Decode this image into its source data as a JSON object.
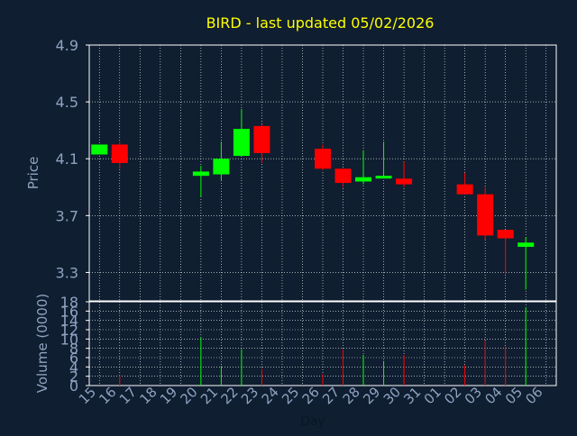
{
  "chart_data": [
    {
      "type": "candlestick",
      "title": "BIRD - last updated 05/02/2026",
      "ylabel": "Price",
      "ylim": [
        3.1,
        4.9
      ],
      "yticks": [
        "3.3",
        "3.7",
        "4.1",
        "4.5",
        "4.9"
      ],
      "grid": true,
      "up_color": "#00ff00",
      "down_color": "#ff0000",
      "x": [
        "15",
        "16",
        "17",
        "18",
        "19",
        "20",
        "21",
        "22",
        "23",
        "24",
        "25",
        "26",
        "27",
        "28",
        "29",
        "30",
        "31",
        "01",
        "02",
        "03",
        "04",
        "05",
        "06"
      ],
      "candles": [
        {
          "day": "15",
          "open": 4.13,
          "high": 4.2,
          "low": 4.13,
          "close": 4.2
        },
        {
          "day": "16",
          "open": 4.2,
          "high": 4.22,
          "low": 4.03,
          "close": 4.07
        },
        {
          "day": "20",
          "open": 3.98,
          "high": 4.05,
          "low": 3.83,
          "close": 4.01
        },
        {
          "day": "21",
          "open": 3.99,
          "high": 4.22,
          "low": 3.95,
          "close": 4.1
        },
        {
          "day": "22",
          "open": 4.12,
          "high": 4.45,
          "low": 4.12,
          "close": 4.31
        },
        {
          "day": "23",
          "open": 4.33,
          "high": 4.34,
          "low": 4.07,
          "close": 4.14
        },
        {
          "day": "26",
          "open": 4.17,
          "high": 4.2,
          "low": 4.02,
          "close": 4.03
        },
        {
          "day": "27",
          "open": 4.03,
          "high": 4.03,
          "low": 3.9,
          "close": 3.93
        },
        {
          "day": "28",
          "open": 3.94,
          "high": 4.16,
          "low": 3.92,
          "close": 3.97
        },
        {
          "day": "29",
          "open": 3.97,
          "high": 4.22,
          "low": 3.97,
          "close": 3.98
        },
        {
          "day": "30",
          "open": 3.96,
          "high": 4.08,
          "low": 3.9,
          "close": 3.92
        },
        {
          "day": "02",
          "open": 3.92,
          "high": 4.0,
          "low": 3.85,
          "close": 3.85
        },
        {
          "day": "03",
          "open": 3.85,
          "high": 3.9,
          "low": 3.53,
          "close": 3.56
        },
        {
          "day": "04",
          "open": 3.6,
          "high": 3.6,
          "low": 3.29,
          "close": 3.54
        },
        {
          "day": "05",
          "open": 3.48,
          "high": 3.55,
          "low": 3.18,
          "close": 3.51
        }
      ]
    },
    {
      "type": "bar",
      "ylabel": "Volume (0000)",
      "xlabel": "Day",
      "ylim": [
        0,
        18
      ],
      "yticks": [
        "0",
        "2",
        "4",
        "6",
        "8",
        "10",
        "12",
        "14",
        "16",
        "18"
      ],
      "grid": true,
      "categories": [
        "15",
        "16",
        "17",
        "18",
        "19",
        "20",
        "21",
        "22",
        "23",
        "24",
        "25",
        "26",
        "27",
        "28",
        "29",
        "30",
        "31",
        "01",
        "02",
        "03",
        "04",
        "05",
        "06"
      ],
      "bars": [
        {
          "day": "16",
          "value": 2.2,
          "color": "#ff0000"
        },
        {
          "day": "20",
          "value": 10.3,
          "color": "#00ff00"
        },
        {
          "day": "21",
          "value": 4.2,
          "color": "#00ff00"
        },
        {
          "day": "22",
          "value": 7.8,
          "color": "#00ff00"
        },
        {
          "day": "23",
          "value": 3.6,
          "color": "#ff0000"
        },
        {
          "day": "26",
          "value": 2.5,
          "color": "#ff0000"
        },
        {
          "day": "27",
          "value": 7.8,
          "color": "#ff0000"
        },
        {
          "day": "28",
          "value": 6.6,
          "color": "#00ff00"
        },
        {
          "day": "29",
          "value": 5.3,
          "color": "#00ff00"
        },
        {
          "day": "30",
          "value": 6.6,
          "color": "#ff0000"
        },
        {
          "day": "02",
          "value": 4.4,
          "color": "#ff0000"
        },
        {
          "day": "03",
          "value": 9.7,
          "color": "#ff0000"
        },
        {
          "day": "04",
          "value": 8.4,
          "color": "#ff0000"
        },
        {
          "day": "05",
          "value": 16.8,
          "color": "#00ff00"
        }
      ]
    }
  ],
  "colors": {
    "background": "#0f1e30",
    "axis_text": "#8fa2c0",
    "title": "#ffff00",
    "grid": "#ffffff",
    "frame": "#ffffff"
  }
}
